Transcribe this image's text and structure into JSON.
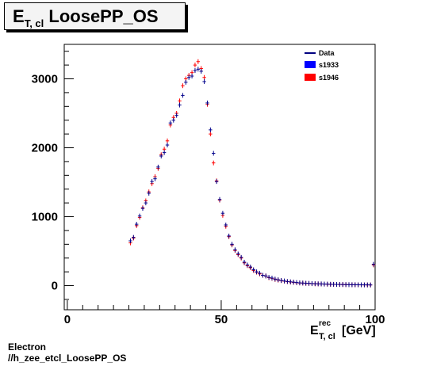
{
  "title": {
    "main": "E",
    "sub": "T, cl",
    "rest": "LoosePP_OS"
  },
  "footer": {
    "line1": "Electron",
    "line2": "//h_zee_etcl_LoosePP_OS"
  },
  "chart_data": {
    "type": "scatter",
    "x_axis": {
      "label_main": "E",
      "label_sup": "rec",
      "label_sub": "T, cl",
      "label_unit": "[GeV]",
      "range": [
        -1,
        100
      ],
      "ticks": [
        0,
        50,
        100
      ]
    },
    "y_axis": {
      "range": [
        -350,
        3500
      ],
      "ticks": [
        0,
        1000,
        2000,
        3000
      ]
    },
    "legend": {
      "position": "top-right",
      "entries": [
        {
          "name": "Data",
          "color": "#000080",
          "style": "line"
        },
        {
          "name": "s1933",
          "color": "#0000ff",
          "style": "fill"
        },
        {
          "name": "s1946",
          "color": "#ff0000",
          "style": "fill"
        }
      ]
    },
    "series": [
      {
        "name": "s1933",
        "color": "#00008b",
        "x": [
          20.5,
          21.5,
          22.5,
          23.5,
          24.5,
          25.5,
          26.5,
          27.5,
          28.5,
          29.5,
          30.5,
          31.5,
          32.5,
          33.5,
          34.5,
          35.5,
          36.5,
          37.5,
          38.5,
          39.5,
          40.5,
          41.5,
          42.5,
          43.5,
          44.5,
          45.5,
          46.5,
          47.5,
          48.5,
          49.5,
          50.5,
          51.5,
          52.5,
          53.5,
          54.5,
          55.5,
          56.5,
          57.5,
          58.5,
          59.5,
          60.5,
          61.5,
          62.5,
          63.5,
          64.5,
          65.5,
          66.5,
          67.5,
          68.5,
          69.5,
          70.5,
          71.5,
          72.5,
          73.5,
          74.5,
          75.5,
          76.5,
          77.5,
          78.5,
          79.5,
          80.5,
          81.5,
          82.5,
          83.5,
          84.5,
          85.5,
          86.5,
          87.5,
          88.5,
          89.5,
          90.5,
          91.5,
          92.5,
          93.5,
          94.5,
          95.5,
          96.5,
          97.5,
          98.5,
          99.5
        ],
        "y": [
          650,
          700,
          890,
          1010,
          1120,
          1200,
          1340,
          1510,
          1550,
          1720,
          1880,
          1930,
          2040,
          2360,
          2400,
          2470,
          2620,
          2760,
          2950,
          3020,
          3040,
          3120,
          3140,
          3110,
          2960,
          2650,
          2260,
          1920,
          1510,
          1250,
          1050,
          880,
          720,
          600,
          520,
          460,
          410,
          340,
          300,
          270,
          230,
          200,
          180,
          150,
          140,
          120,
          110,
          95,
          85,
          75,
          68,
          60,
          55,
          50,
          45,
          40,
          38,
          35,
          33,
          30,
          28,
          26,
          25,
          23,
          22,
          20,
          19,
          18,
          17,
          16,
          15,
          14,
          13,
          13,
          12,
          12,
          11,
          11,
          10,
          310
        ]
      },
      {
        "name": "s1946",
        "color": "#ff0000",
        "x": [
          20.5,
          21.5,
          22.5,
          23.5,
          24.5,
          25.5,
          26.5,
          27.5,
          28.5,
          29.5,
          30.5,
          31.5,
          32.5,
          33.5,
          34.5,
          35.5,
          36.5,
          37.5,
          38.5,
          39.5,
          40.5,
          41.5,
          42.5,
          43.5,
          44.5,
          45.5,
          46.5,
          47.5,
          48.5,
          49.5,
          50.5,
          51.5,
          52.5,
          53.5,
          54.5,
          55.5,
          56.5,
          57.5,
          58.5,
          59.5,
          60.5,
          61.5,
          62.5,
          63.5,
          64.5,
          65.5,
          66.5,
          67.5,
          68.5,
          69.5,
          70.5,
          71.5,
          72.5,
          73.5,
          74.5,
          75.5,
          76.5,
          77.5,
          78.5,
          79.5,
          80.5,
          81.5,
          82.5,
          83.5,
          84.5,
          85.5,
          86.5,
          87.5,
          88.5,
          89.5,
          90.5,
          91.5,
          92.5,
          93.5,
          94.5,
          95.5,
          96.5,
          97.5,
          98.5,
          99.5
        ],
        "y": [
          620,
          690,
          870,
          990,
          1130,
          1230,
          1360,
          1480,
          1580,
          1700,
          1900,
          1980,
          2100,
          2330,
          2440,
          2500,
          2680,
          2900,
          3000,
          3050,
          3090,
          3200,
          3250,
          3150,
          3020,
          2630,
          2200,
          1780,
          1520,
          1240,
          1020,
          860,
          710,
          590,
          510,
          450,
          400,
          330,
          290,
          260,
          220,
          195,
          170,
          150,
          140,
          115,
          105,
          90,
          80,
          72,
          65,
          58,
          52,
          48,
          42,
          38,
          36,
          33,
          31,
          28,
          26,
          25,
          24,
          22,
          21,
          19,
          18,
          17,
          16,
          15,
          14,
          14,
          13,
          12,
          12,
          11,
          11,
          10,
          10,
          300
        ]
      }
    ]
  }
}
